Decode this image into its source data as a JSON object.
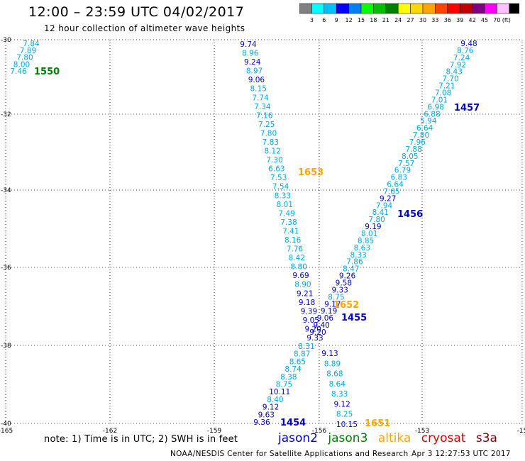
{
  "header": {
    "title": "12:00 – 23:59 UTC 04/02/2017",
    "subtitle": "12 hour collection of altimeter wave heights"
  },
  "legend": {
    "colors": [
      "#808080",
      "#00ffff",
      "#00bfff",
      "#0000ff",
      "#0080ff",
      "#00ff00",
      "#00c000",
      "#008000",
      "#ffff00",
      "#ffd700",
      "#ffa500",
      "#ff4500",
      "#ff0000",
      "#c00000",
      "#800080",
      "#ff00ff",
      "#ffc0ff",
      "#000000"
    ],
    "labels": [
      "3",
      "6",
      "9",
      "12",
      "15",
      "18",
      "21",
      "24",
      "27",
      "30",
      "33",
      "36",
      "39",
      "42",
      "45",
      "70",
      "(ft)"
    ]
  },
  "map": {
    "lon_ticks": [
      "-165",
      "-162",
      "-159",
      "-156",
      "-153",
      "-15"
    ],
    "lat_ticks": [
      "-30",
      "-32",
      "-34",
      "-36",
      "-38",
      "-40"
    ],
    "colors": {
      "jason2": "#0000c0",
      "jason3": "#008000",
      "altika": "#ffa500",
      "cryosat": "#d00000",
      "s3a": "#800000",
      "light": "#00aadd"
    },
    "pass_labels": [
      {
        "text": "1550",
        "sat": "jason3"
      },
      {
        "text": "1457",
        "sat": "jason2"
      },
      {
        "text": "1653",
        "sat": "altika"
      },
      {
        "text": "1456",
        "sat": "jason2"
      },
      {
        "text": "1652",
        "sat": "altika"
      },
      {
        "text": "1455",
        "sat": "jason2"
      },
      {
        "text": "1454",
        "sat": "jason2"
      },
      {
        "text": "1651",
        "sat": "altika"
      }
    ],
    "track_nw": [
      "7.84",
      "7.89",
      "7.80",
      "8.00",
      "7.46"
    ],
    "track_left": [
      "9.74",
      "8.96",
      "9.24",
      "8.97",
      "9.06",
      "8.15",
      "7.74",
      "7.34",
      "7.16",
      "7.25",
      "7.80",
      "7.83",
      "8.12",
      "7.30",
      "6.63",
      "7.53",
      "7.54",
      "8.33",
      "8.01",
      "7.49",
      "7.38",
      "7.41",
      "8.16",
      "7.76",
      "8.42",
      "8.80",
      "9.69",
      "8.90",
      "9.21",
      "9.18",
      "9.39",
      "9.05",
      "9.20",
      "9.33"
    ],
    "track_right": [
      "9.48",
      "8.76",
      "7.24",
      "7.92",
      "8.43",
      "7.70",
      "7.21",
      "7.08",
      "7.01",
      "6.98",
      "6.88",
      "5.94",
      "6.64",
      "7.80",
      "7.96",
      "7.88",
      "8.05",
      "7.57",
      "6.79",
      "6.83",
      "6.64",
      "7.65",
      "9.27",
      "7.94",
      "8.41",
      "7.80",
      "9.19",
      "8.01",
      "8.85",
      "8.63",
      "8.33",
      "7.86",
      "8.47",
      "9.26",
      "9.58",
      "9.33",
      "8.75",
      "9.17",
      "9.19",
      "9.06",
      "9.40",
      "9.20"
    ],
    "track_lower_left": [
      "8.31",
      "8.87",
      "8.65",
      "8.74",
      "8.38",
      "8.75",
      "10.11",
      "8.40",
      "9.12",
      "9.63",
      "9.36"
    ],
    "track_lower_right": [
      "9.13",
      "8.89",
      "8.68",
      "8.64",
      "8.33",
      "9.12",
      "8.25",
      "10.15"
    ]
  },
  "notes": {
    "note": "note: 1) Time is in UTC; 2) SWH is in feet",
    "satellites": [
      "jason2",
      "jason3",
      "altika",
      "cryosat",
      "s3a"
    ]
  },
  "footer": {
    "credit": "NOAA/NESDIS Center for Satellite Applications and Research",
    "timestamp": "Apr  3 12:27:53 UTC 2017"
  }
}
